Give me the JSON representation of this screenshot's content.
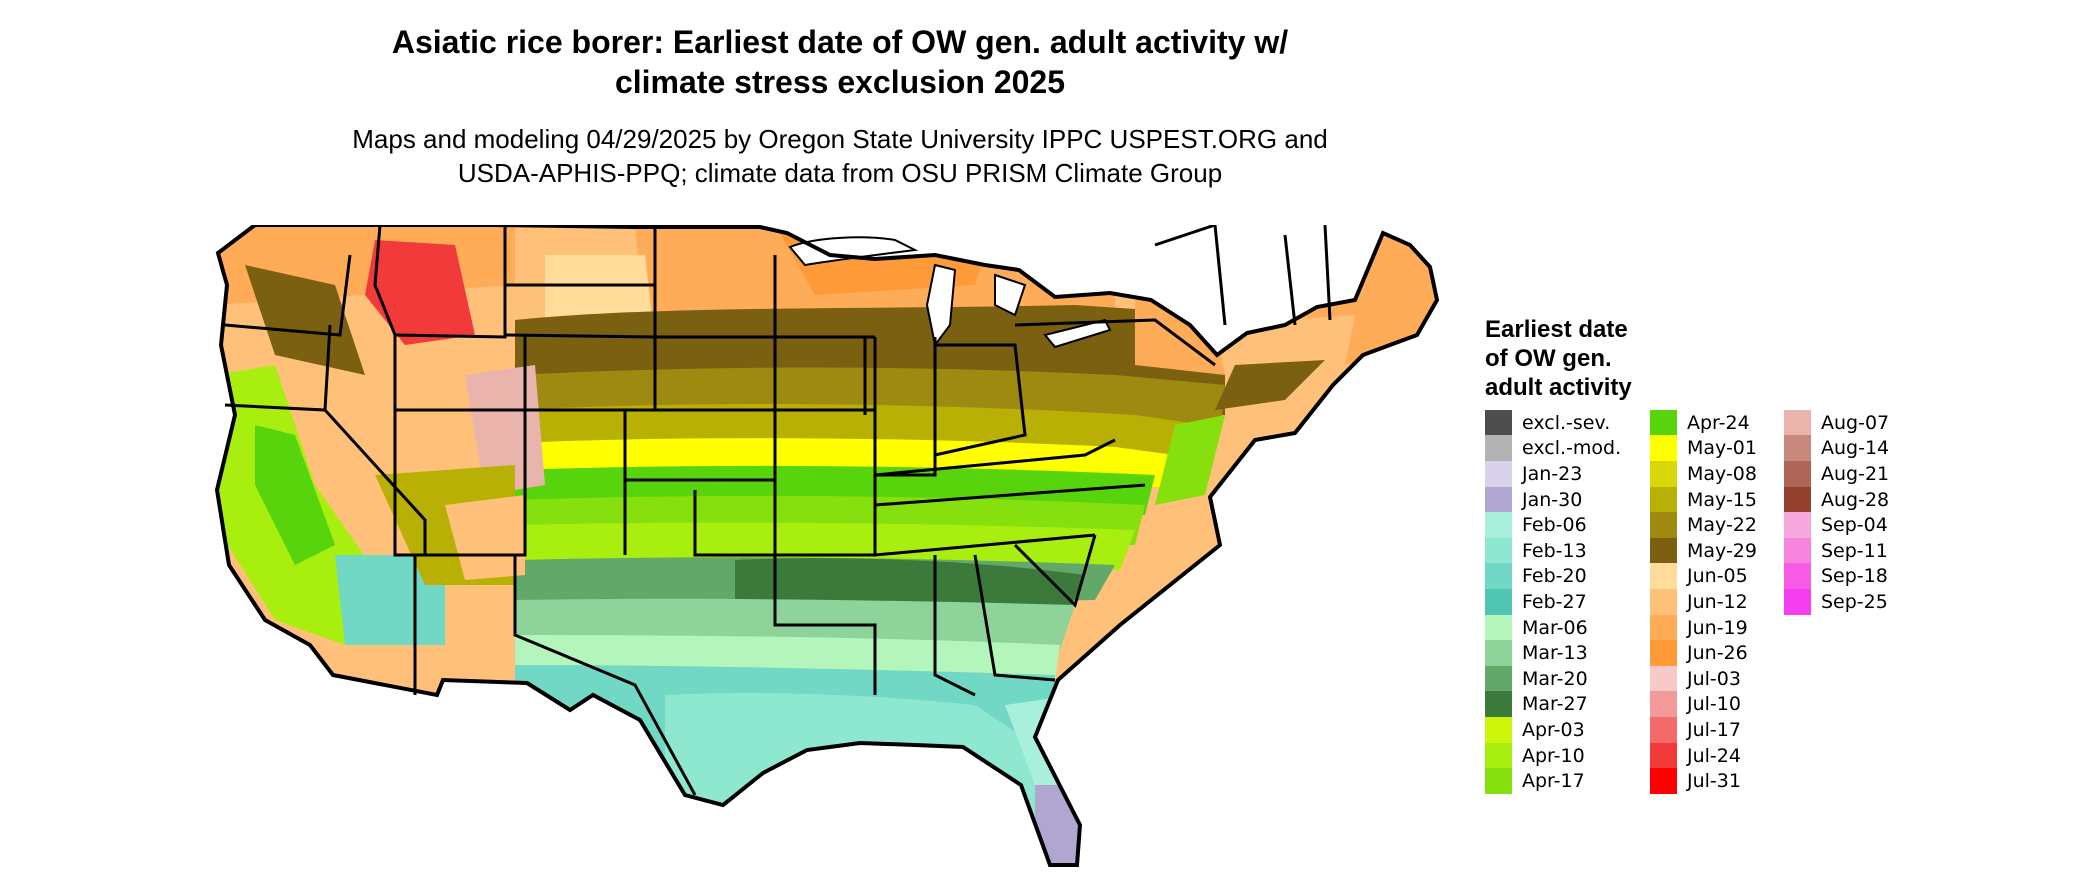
{
  "title_line1": "Asiatic rice borer: Earliest date of OW gen. adult activity w/",
  "title_line2": "climate stress exclusion 2025",
  "subtitle_line1": "Maps and modeling 04/29/2025 by Oregon State University IPPC USPEST.ORG and",
  "subtitle_line2": "USDA-APHIS-PPQ; climate data from OSU PRISM Climate Group",
  "legend": {
    "title_line1": "Earliest date",
    "title_line2": "of OW gen.",
    "title_line3": "adult activity",
    "columns": [
      [
        {
          "label": "excl.-sev.",
          "color": "#4d4d4d"
        },
        {
          "label": "excl.-mod.",
          "color": "#b3b3b3"
        },
        {
          "label": "Jan-23",
          "color": "#d9d2eb"
        },
        {
          "label": "Jan-30",
          "color": "#b0a6cf"
        },
        {
          "label": "Feb-06",
          "color": "#a8f0dc"
        },
        {
          "label": "Feb-13",
          "color": "#8ee8d0"
        },
        {
          "label": "Feb-20",
          "color": "#70d8c4"
        },
        {
          "label": "Feb-27",
          "color": "#4fc4b0"
        },
        {
          "label": "Mar-06",
          "color": "#b4f5bc"
        },
        {
          "label": "Mar-13",
          "color": "#8ed49a"
        },
        {
          "label": "Mar-20",
          "color": "#62a868"
        },
        {
          "label": "Mar-27",
          "color": "#3c7a3c"
        },
        {
          "label": "Apr-03",
          "color": "#ccf50a"
        },
        {
          "label": "Apr-10",
          "color": "#a8ee0e"
        },
        {
          "label": "Apr-17",
          "color": "#86e00e"
        }
      ],
      [
        {
          "label": "Apr-24",
          "color": "#58d40c"
        },
        {
          "label": "May-01",
          "color": "#ffff00"
        },
        {
          "label": "May-08",
          "color": "#d9d60a"
        },
        {
          "label": "May-15",
          "color": "#b8b004"
        },
        {
          "label": "May-22",
          "color": "#9e8a10"
        },
        {
          "label": "May-29",
          "color": "#7a6010"
        },
        {
          "label": "Jun-05",
          "color": "#ffdc9a"
        },
        {
          "label": "Jun-12",
          "color": "#ffc07a"
        },
        {
          "label": "Jun-19",
          "color": "#ffac58"
        },
        {
          "label": "Jun-26",
          "color": "#ff9a38"
        },
        {
          "label": "Jul-03",
          "color": "#f7c9c9"
        },
        {
          "label": "Jul-10",
          "color": "#f29a9a"
        },
        {
          "label": "Jul-17",
          "color": "#f26a6a"
        },
        {
          "label": "Jul-24",
          "color": "#f23a3a"
        },
        {
          "label": "Jul-31",
          "color": "#ff0000"
        }
      ],
      [
        {
          "label": "Aug-07",
          "color": "#e8b4ac"
        },
        {
          "label": "Aug-14",
          "color": "#c98a7e"
        },
        {
          "label": "Aug-21",
          "color": "#b06656"
        },
        {
          "label": "Aug-28",
          "color": "#94402e"
        },
        {
          "label": "Sep-04",
          "color": "#f7a8dc"
        },
        {
          "label": "Sep-11",
          "color": "#f784dc"
        },
        {
          "label": "Sep-18",
          "color": "#f75ce6"
        },
        {
          "label": "Sep-25",
          "color": "#f53ef0"
        }
      ]
    ]
  }
}
